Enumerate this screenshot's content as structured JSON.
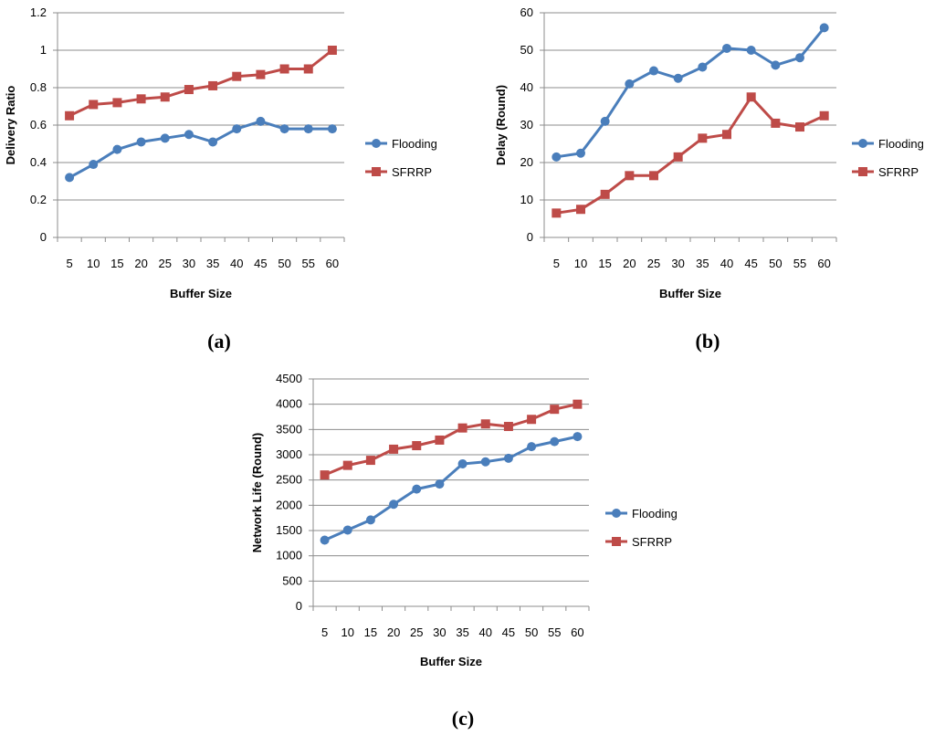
{
  "colors": {
    "flooding": "#4a7ebb",
    "sfrrp": "#be4b48"
  },
  "chart_data": [
    {
      "type": "line",
      "caption": "(a)",
      "title": "",
      "xlabel": "Buffer Size",
      "ylabel": "Delivery Ratio",
      "categories": [
        "5",
        "10",
        "15",
        "20",
        "25",
        "30",
        "35",
        "40",
        "45",
        "50",
        "55",
        "60"
      ],
      "ylim": [
        0,
        1.2
      ],
      "yticks": [
        "0",
        "0.2",
        "0.4",
        "0.6",
        "0.8",
        "1",
        "1.2"
      ],
      "grid": true,
      "legend_position": "right",
      "series": [
        {
          "name": "Flooding",
          "marker": "circle",
          "values": [
            0.32,
            0.39,
            0.47,
            0.51,
            0.53,
            0.55,
            0.51,
            0.58,
            0.62,
            0.58,
            0.58,
            0.58
          ]
        },
        {
          "name": "SFRRP",
          "marker": "square",
          "values": [
            0.65,
            0.71,
            0.72,
            0.74,
            0.75,
            0.79,
            0.81,
            0.86,
            0.87,
            0.9,
            0.9,
            1.0
          ]
        }
      ]
    },
    {
      "type": "line",
      "caption": "(b)",
      "title": "",
      "xlabel": "Buffer Size",
      "ylabel": "Delay (Round)",
      "categories": [
        "5",
        "10",
        "15",
        "20",
        "25",
        "30",
        "35",
        "40",
        "45",
        "50",
        "55",
        "60"
      ],
      "ylim": [
        0,
        60
      ],
      "yticks": [
        "0",
        "10",
        "20",
        "30",
        "40",
        "50",
        "60"
      ],
      "grid": true,
      "legend_position": "right",
      "series": [
        {
          "name": "Flooding",
          "marker": "circle",
          "values": [
            21.5,
            22.5,
            31,
            41,
            44.5,
            42.5,
            45.5,
            50.5,
            50,
            46,
            48,
            56
          ]
        },
        {
          "name": "SFRRP",
          "marker": "square",
          "values": [
            6.5,
            7.5,
            11.5,
            16.5,
            16.5,
            21.5,
            26.5,
            27.5,
            37.5,
            30.5,
            29.5,
            32.5
          ]
        }
      ]
    },
    {
      "type": "line",
      "caption": "(c)",
      "title": "",
      "xlabel": "Buffer Size",
      "ylabel": "Network Life (Round)",
      "categories": [
        "5",
        "10",
        "15",
        "20",
        "25",
        "30",
        "35",
        "40",
        "45",
        "50",
        "55",
        "60"
      ],
      "ylim": [
        0,
        4500
      ],
      "yticks": [
        "0",
        "500",
        "1000",
        "1500",
        "2000",
        "2500",
        "3000",
        "3500",
        "4000",
        "4500"
      ],
      "grid": true,
      "legend_position": "right",
      "series": [
        {
          "name": "Flooding",
          "marker": "circle",
          "values": [
            1310,
            1510,
            1710,
            2020,
            2320,
            2420,
            2820,
            2860,
            2930,
            3160,
            3260,
            3360
          ]
        },
        {
          "name": "SFRRP",
          "marker": "square",
          "values": [
            2600,
            2790,
            2890,
            3110,
            3180,
            3290,
            3530,
            3610,
            3560,
            3700,
            3900,
            4000
          ]
        }
      ]
    }
  ]
}
